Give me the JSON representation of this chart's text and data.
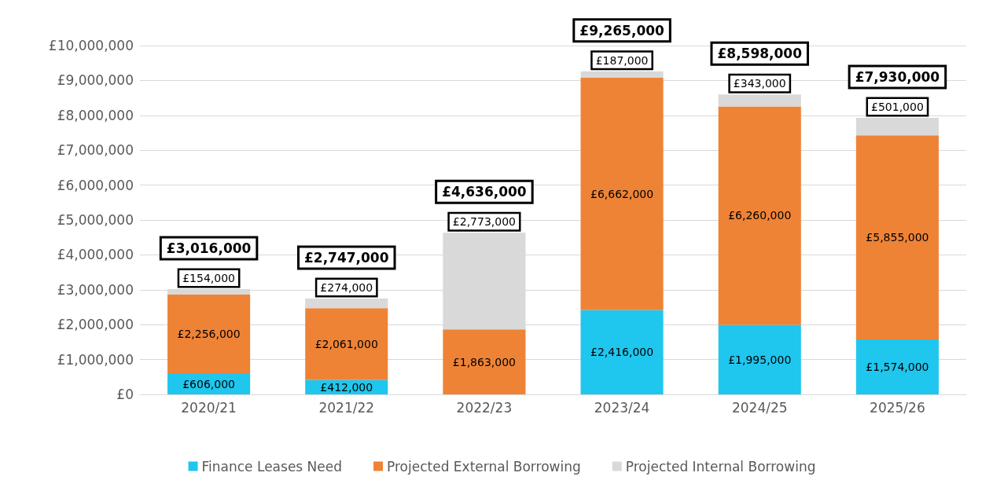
{
  "chart_data": {
    "type": "bar",
    "stacked": true,
    "categories": [
      "2020/21",
      "2021/22",
      "2022/23",
      "2023/24",
      "2024/25",
      "2025/26"
    ],
    "series": [
      {
        "name": "Finance Leases Need",
        "color": "#1fc6ee",
        "values": [
          606000,
          412000,
          null,
          2416000,
          1995000,
          1574000
        ],
        "value_labels": [
          "£606,000",
          "£412,000",
          null,
          "£2,416,000",
          "£1,995,000",
          "£1,574,000"
        ]
      },
      {
        "name": "Projected External Borrowing",
        "color": "#ee8336",
        "values": [
          2256000,
          2061000,
          1863000,
          6662000,
          6260000,
          5855000
        ],
        "value_labels": [
          "£2,256,000",
          "£2,061,000",
          "£1,863,000",
          "£6,662,000",
          "£6,260,000",
          "£5,855,000"
        ]
      },
      {
        "name": "Projected Internal Borrowing",
        "color": "#d9d9d9",
        "values": [
          154000,
          274000,
          2773000,
          187000,
          343000,
          501000
        ],
        "value_labels": [
          "£154,000",
          "£274,000",
          "£2,773,000",
          "£187,000",
          "£343,000",
          "£501,000"
        ]
      }
    ],
    "totals": [
      "£3,016,000",
      "£2,747,000",
      "£4,636,000",
      "£9,265,000",
      "£8,598,000",
      "£7,930,000"
    ],
    "ylim": [
      0,
      10000000
    ],
    "yticks": [
      {
        "value": 0,
        "label": "£0"
      },
      {
        "value": 1000000,
        "label": "£1,000,000"
      },
      {
        "value": 2000000,
        "label": "£2,000,000"
      },
      {
        "value": 3000000,
        "label": "£3,000,000"
      },
      {
        "value": 4000000,
        "label": "£4,000,000"
      },
      {
        "value": 5000000,
        "label": "£5,000,000"
      },
      {
        "value": 6000000,
        "label": "£6,000,000"
      },
      {
        "value": 7000000,
        "label": "£7,000,000"
      },
      {
        "value": 8000000,
        "label": "£8,000,000"
      },
      {
        "value": 9000000,
        "label": "£9,000,000"
      },
      {
        "value": 10000000,
        "label": "£10,000,000"
      }
    ],
    "grid": "y",
    "legend": "bottom"
  }
}
